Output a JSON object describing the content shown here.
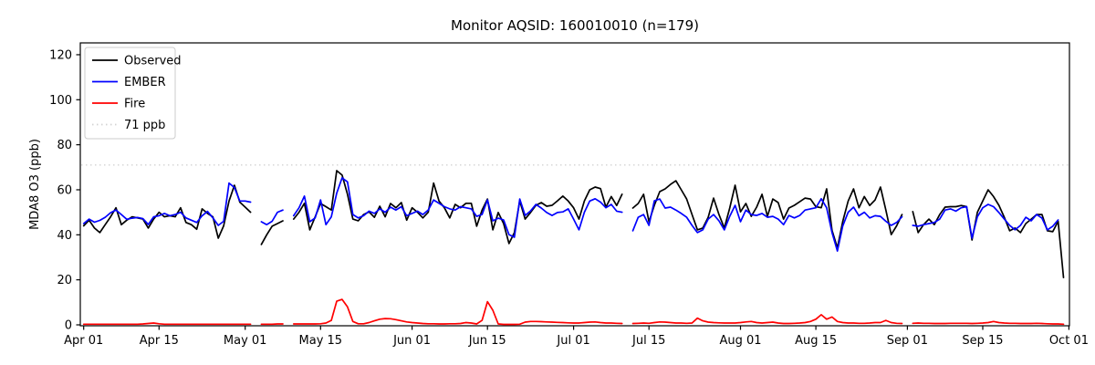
{
  "title": "Monitor AQSID: 160010010 (n=179)",
  "y_axis": {
    "label": "MDA8 O3 (ppb)",
    "ticks": [
      0,
      20,
      40,
      60,
      80,
      100,
      120
    ],
    "range_ppb": [
      0,
      125
    ]
  },
  "x_axis": {
    "tick_labels": [
      "Apr 01",
      "Apr 15",
      "May 01",
      "May 15",
      "Jun 01",
      "Jun 15",
      "Jul 01",
      "Jul 15",
      "Aug 01",
      "Aug 15",
      "Sep 01",
      "Sep 15",
      "Oct 01"
    ],
    "tick_days": [
      0,
      14,
      30,
      44,
      61,
      75,
      91,
      105,
      122,
      136,
      153,
      167,
      183
    ]
  },
  "legend": [
    {
      "label": "Observed",
      "color": "#000000",
      "style": "solid"
    },
    {
      "label": "EMBER",
      "color": "#0000ff",
      "style": "solid"
    },
    {
      "label": "Fire",
      "color": "#ff0000",
      "style": "solid"
    },
    {
      "label": "71 ppb",
      "color": "#d3d3d3",
      "style": "dotted"
    }
  ],
  "threshold": {
    "value": 71,
    "label": "71 ppb",
    "color": "#d3d3d3"
  },
  "colors": {
    "observed": "#000000",
    "ember": "#0000ff",
    "fire": "#ff0000",
    "threshold": "#d3d3d3",
    "spine": "#000000",
    "background": "#ffffff"
  },
  "chart_data": {
    "type": "line",
    "title": "Monitor AQSID: 160010010 (n=179)",
    "ylabel": "MDA8 O3 (ppb)",
    "xlabel": "",
    "ylim": [
      0,
      125
    ],
    "x_unit": "days since Apr 01 (daily values, Apr 01 - Sep 30)",
    "n_points": 179,
    "missing_days": [
      "May 03",
      "May 09",
      "Jul 11",
      "Sep 01"
    ],
    "threshold_ppb": 71,
    "grid": false,
    "legend_position": "upper-left",
    "series": [
      {
        "name": "Observed",
        "color": "#000000",
        "values": [
          44,
          46.5,
          43,
          41,
          44.5,
          48,
          52,
          44.5,
          46.5,
          48,
          47.5,
          47,
          43,
          47,
          50,
          48,
          48.5,
          48,
          52,
          45.5,
          44.5,
          42.5,
          51.5,
          49.5,
          48,
          38.5,
          44,
          55,
          62,
          54.5,
          52.3,
          50,
          null,
          35.7,
          40,
          43.8,
          45,
          46.2,
          null,
          47,
          50,
          54,
          42.2,
          48,
          53.9,
          52.5,
          51,
          68.5,
          66.5,
          58,
          47,
          46.2,
          49,
          50.2,
          47.8,
          52.7,
          48,
          53.9,
          52,
          54.3,
          46.5,
          52,
          50,
          47.5,
          50,
          63,
          55,
          52,
          47.5,
          53.5,
          52,
          54,
          54,
          43.8,
          51,
          55.9,
          42.2,
          49.9,
          45,
          36.1,
          41,
          55.1,
          47,
          49.9,
          53.1,
          54.3,
          52.7,
          53.1,
          55.1,
          57.2,
          55,
          52,
          47,
          55,
          60,
          61.2,
          60.5,
          52.3,
          57,
          53,
          58,
          null,
          51.9,
          53.9,
          58,
          45.8,
          53.1,
          59.2,
          60.4,
          62.4,
          64,
          60,
          55.9,
          49,
          42.2,
          43,
          47.8,
          56.3,
          49,
          43,
          51.9,
          62,
          50.2,
          53.9,
          48.2,
          52.3,
          58,
          48.2,
          55.9,
          54.3,
          47,
          51.9,
          53.1,
          54.7,
          56.3,
          55.9,
          52.5,
          52,
          60.4,
          42,
          34.2,
          46,
          55,
          60.4,
          52,
          57,
          53,
          55.5,
          61.2,
          51,
          40.1,
          44,
          49,
          null,
          50.3,
          41,
          44.5,
          47,
          44.5,
          49,
          52.3,
          52.5,
          52.5,
          53,
          52.5,
          37.7,
          50,
          55,
          60,
          57,
          53.1,
          47.8,
          41.8,
          43,
          41,
          45,
          47,
          49,
          49,
          41.8,
          41.4,
          46,
          21
        ]
      },
      {
        "name": "EMBER",
        "color": "#0000ff",
        "values": [
          45,
          47,
          45.6,
          46.4,
          47.8,
          49.8,
          51,
          49,
          46.9,
          47.4,
          47.7,
          47.2,
          44.6,
          48,
          48.5,
          49.5,
          48.5,
          49,
          50,
          47.5,
          46.5,
          45.5,
          48.5,
          50.4,
          47.5,
          44.2,
          46,
          63,
          61,
          55,
          55,
          54.5,
          null,
          45.8,
          44.5,
          46,
          50,
          51,
          null,
          48.5,
          52,
          57.2,
          45.8,
          47.5,
          55.5,
          44.5,
          48,
          58.5,
          65.3,
          63.5,
          49,
          47.5,
          48.5,
          50.5,
          49.5,
          51.5,
          50,
          52.3,
          51,
          52.5,
          48.5,
          49.5,
          50.5,
          49,
          51,
          55.5,
          54,
          52.5,
          51.5,
          51,
          52.5,
          52,
          51.5,
          48.2,
          49,
          55.5,
          46.2,
          47.4,
          46.6,
          40.1,
          38.9,
          55.9,
          48.6,
          50.6,
          53.5,
          51.9,
          49.9,
          48.6,
          49.9,
          50.2,
          51.5,
          47,
          42.2,
          50,
          55,
          56,
          54.5,
          52,
          53.5,
          50.5,
          50,
          null,
          41.8,
          47.8,
          49,
          44.2,
          55.1,
          55.9,
          51.9,
          52.3,
          51,
          49.5,
          47.8,
          44.2,
          41,
          42.2,
          47,
          49,
          46.2,
          42.2,
          48.2,
          53.1,
          45.8,
          51,
          49,
          48.6,
          49.5,
          47.8,
          48.2,
          47,
          44.5,
          48.6,
          47.5,
          48.6,
          51,
          51.5,
          52,
          56,
          52,
          41,
          32.8,
          44,
          50,
          52.3,
          48.5,
          50,
          47.5,
          48.5,
          48.2,
          46,
          44.2,
          45.5,
          48,
          null,
          44.2,
          43.8,
          44.5,
          45,
          45.5,
          47,
          51,
          51.5,
          50.5,
          52,
          52.5,
          38.5,
          48,
          52,
          53.5,
          52.5,
          49.9,
          47,
          44.2,
          42.2,
          44.2,
          47.8,
          46.2,
          49,
          47.4,
          42.2,
          43.8,
          46.6,
          null
        ]
      },
      {
        "name": "Fire",
        "color": "#ff0000",
        "values": [
          0.3,
          0.3,
          0.3,
          0.3,
          0.3,
          0.3,
          0.3,
          0.3,
          0.3,
          0.3,
          0.3,
          0.4,
          0.6,
          0.8,
          0.5,
          0.3,
          0.3,
          0.3,
          0.3,
          0.3,
          0.3,
          0.3,
          0.3,
          0.3,
          0.3,
          0.3,
          0.3,
          0.3,
          0.3,
          0.3,
          0.3,
          0.3,
          null,
          0.3,
          0.3,
          0.3,
          0.4,
          0.4,
          null,
          0.4,
          0.4,
          0.4,
          0.4,
          0.4,
          0.5,
          0.8,
          2,
          10.5,
          11.3,
          8,
          1.5,
          0.5,
          0.5,
          1,
          1.8,
          2.5,
          2.8,
          2.7,
          2.3,
          1.8,
          1.3,
          1,
          0.8,
          0.6,
          0.5,
          0.5,
          0.4,
          0.4,
          0.5,
          0.5,
          0.6,
          1,
          0.8,
          0.4,
          2,
          10.3,
          6.5,
          0.4,
          0.2,
          0.2,
          0.2,
          0.3,
          1.2,
          1.5,
          1.5,
          1.4,
          1.3,
          1.2,
          1.1,
          1,
          0.9,
          0.8,
          0.8,
          1,
          1.2,
          1.3,
          1,
          0.8,
          0.8,
          0.7,
          0.6,
          null,
          0.6,
          0.7,
          0.8,
          0.7,
          1,
          1.3,
          1.2,
          1,
          0.8,
          0.8,
          0.7,
          0.8,
          3,
          1.8,
          1.2,
          1,
          0.9,
          0.8,
          0.8,
          0.8,
          1,
          1.3,
          1.5,
          1,
          0.8,
          1,
          1.2,
          0.8,
          0.6,
          0.6,
          0.7,
          0.8,
          1,
          1.5,
          2.5,
          4.5,
          2.5,
          3.5,
          1.5,
          1,
          0.8,
          0.8,
          0.7,
          0.7,
          0.8,
          1,
          1,
          2,
          1,
          0.7,
          0.6,
          null,
          0.7,
          0.8,
          0.7,
          0.7,
          0.6,
          0.6,
          0.6,
          0.7,
          0.7,
          0.7,
          0.7,
          0.6,
          0.7,
          0.8,
          1,
          1.5,
          1,
          0.8,
          0.7,
          0.7,
          0.6,
          0.6,
          0.6,
          0.7,
          0.6,
          0.5,
          0.4,
          0.4,
          0.3
        ]
      }
    ]
  }
}
